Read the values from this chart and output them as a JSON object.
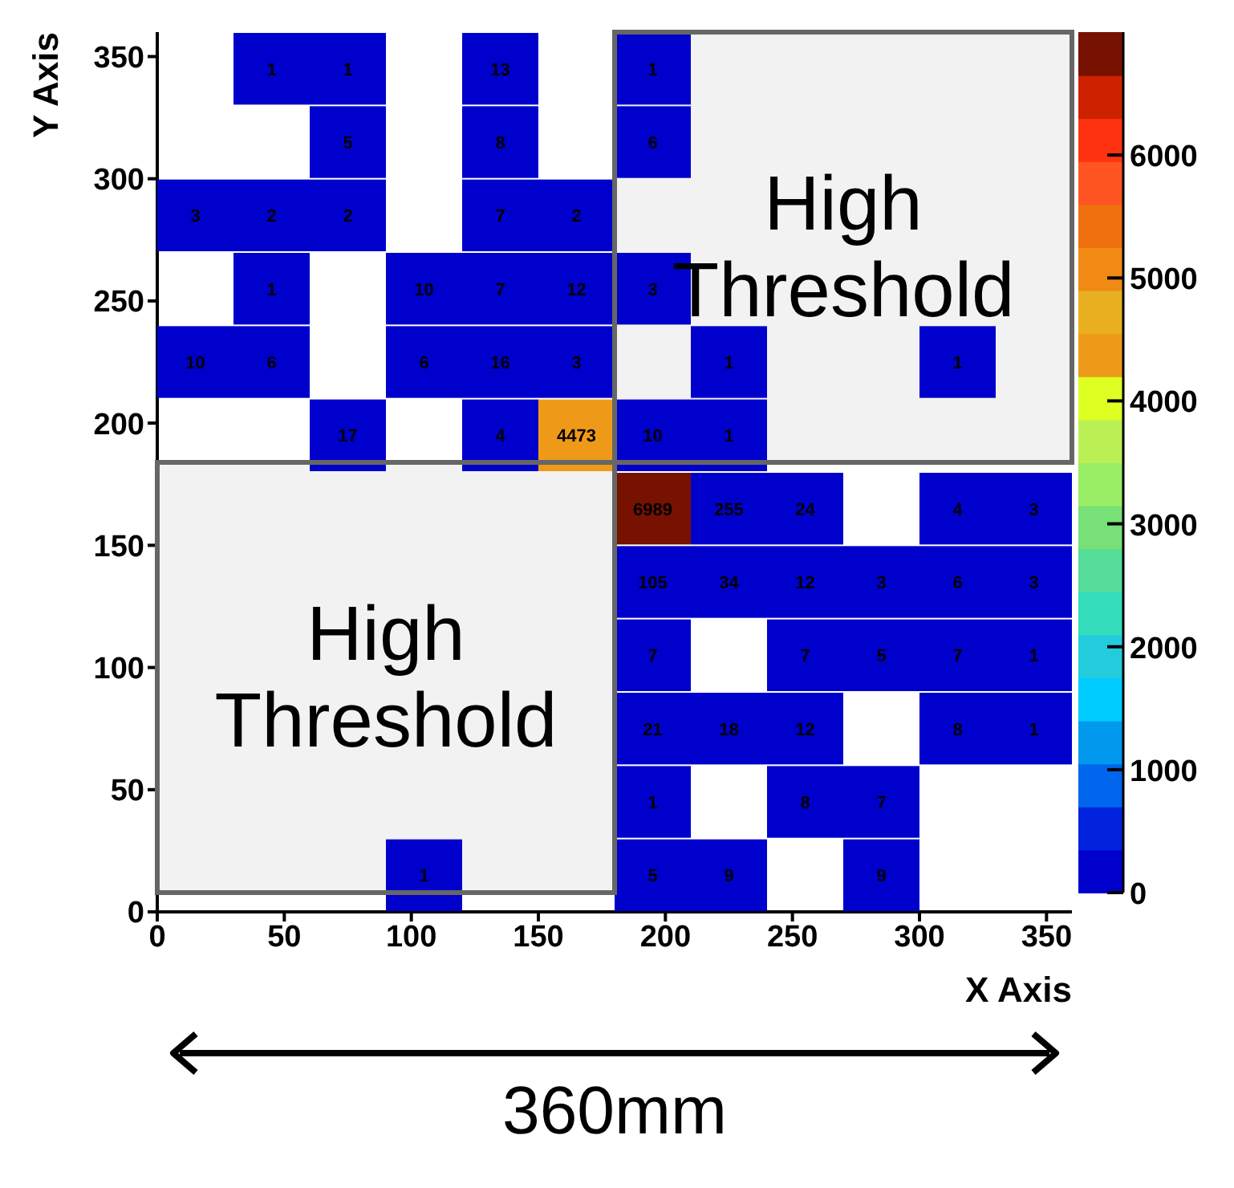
{
  "chart_data": {
    "type": "heatmap",
    "xlabel": "X Axis",
    "ylabel": "Y Axis",
    "x": [
      15,
      45,
      75,
      105,
      135,
      165,
      195,
      225,
      255,
      285,
      315,
      345
    ],
    "y": [
      345,
      315,
      285,
      255,
      225,
      195,
      165,
      135,
      105,
      75,
      45,
      15
    ],
    "cells": [
      [
        null,
        1,
        1,
        null,
        13,
        null,
        1,
        null,
        null,
        null,
        null,
        null
      ],
      [
        null,
        null,
        5,
        null,
        8,
        null,
        6,
        null,
        null,
        null,
        null,
        null
      ],
      [
        3,
        2,
        2,
        null,
        7,
        2,
        null,
        null,
        null,
        null,
        null,
        null
      ],
      [
        null,
        1,
        null,
        10,
        7,
        12,
        3,
        null,
        null,
        null,
        null,
        null
      ],
      [
        10,
        6,
        null,
        6,
        16,
        3,
        null,
        1,
        null,
        null,
        1,
        null
      ],
      [
        null,
        null,
        17,
        null,
        4,
        4473,
        10,
        1,
        null,
        null,
        null,
        null
      ],
      [
        null,
        null,
        null,
        null,
        null,
        null,
        6989,
        255,
        24,
        null,
        4,
        3
      ],
      [
        null,
        null,
        null,
        null,
        null,
        null,
        105,
        34,
        12,
        3,
        6,
        3
      ],
      [
        null,
        null,
        null,
        null,
        null,
        null,
        7,
        null,
        7,
        5,
        7,
        1
      ],
      [
        null,
        null,
        null,
        null,
        null,
        null,
        21,
        18,
        12,
        null,
        8,
        1
      ],
      [
        null,
        null,
        null,
        null,
        null,
        null,
        1,
        null,
        8,
        7,
        null,
        null
      ],
      [
        null,
        null,
        null,
        1,
        null,
        null,
        5,
        9,
        null,
        9,
        null,
        null
      ]
    ],
    "data_labels": true,
    "xlim": [
      0,
      360
    ],
    "ylim": [
      0,
      360
    ],
    "xticks": [
      0,
      50,
      100,
      150,
      200,
      250,
      300,
      350
    ],
    "yticks": [
      0,
      50,
      100,
      150,
      200,
      250,
      300,
      350
    ],
    "clim": [
      0,
      7000
    ],
    "cticks": [
      0,
      1000,
      2000,
      3000,
      4000,
      5000,
      6000
    ],
    "grid": false,
    "annotations": [
      "High Threshold",
      "High Threshold",
      "360mm"
    ]
  }
}
